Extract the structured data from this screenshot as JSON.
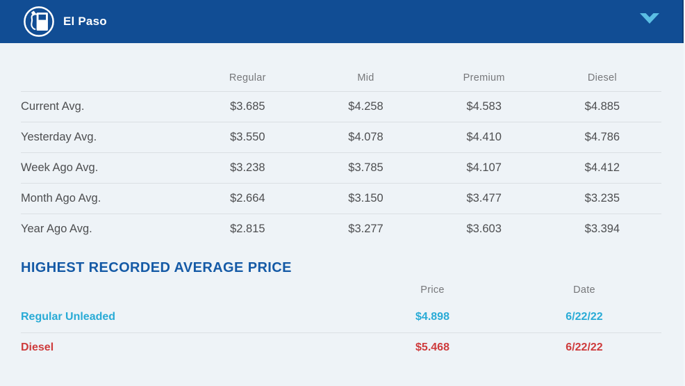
{
  "header": {
    "title": "El Paso",
    "icons": {
      "pump": "gas-pump-icon",
      "toggle": "chevron-down-icon"
    }
  },
  "colors": {
    "header_bg": "#114D94",
    "chevron": "#5BBEE4",
    "content_bg": "#EEF3F7",
    "divider": "#DADFE3",
    "text": "#4D4E50",
    "muted_header": "#76777A",
    "section_title": "#155AA6",
    "regular_accent": "#29ABD6",
    "diesel_accent": "#CE3B3C"
  },
  "price_table": {
    "columns": [
      "Regular",
      "Mid",
      "Premium",
      "Diesel"
    ],
    "rows": [
      {
        "label": "Current Avg.",
        "values": [
          "$3.685",
          "$4.258",
          "$4.583",
          "$4.885"
        ]
      },
      {
        "label": "Yesterday Avg.",
        "values": [
          "$3.550",
          "$4.078",
          "$4.410",
          "$4.786"
        ]
      },
      {
        "label": "Week Ago Avg.",
        "values": [
          "$3.238",
          "$3.785",
          "$4.107",
          "$4.412"
        ]
      },
      {
        "label": "Month Ago Avg.",
        "values": [
          "$2.664",
          "$3.150",
          "$3.477",
          "$3.235"
        ]
      },
      {
        "label": "Year Ago Avg.",
        "values": [
          "$2.815",
          "$3.277",
          "$3.603",
          "$3.394"
        ]
      }
    ]
  },
  "highest_recorded": {
    "title": "HIGHEST RECORDED AVERAGE PRICE",
    "columns": {
      "price": "Price",
      "date": "Date"
    },
    "rows": [
      {
        "label": "Regular Unleaded",
        "price": "$4.898",
        "date": "6/22/22",
        "color": "#29ABD6"
      },
      {
        "label": "Diesel",
        "price": "$5.468",
        "date": "6/22/22",
        "color": "#CE3B3C"
      }
    ]
  }
}
